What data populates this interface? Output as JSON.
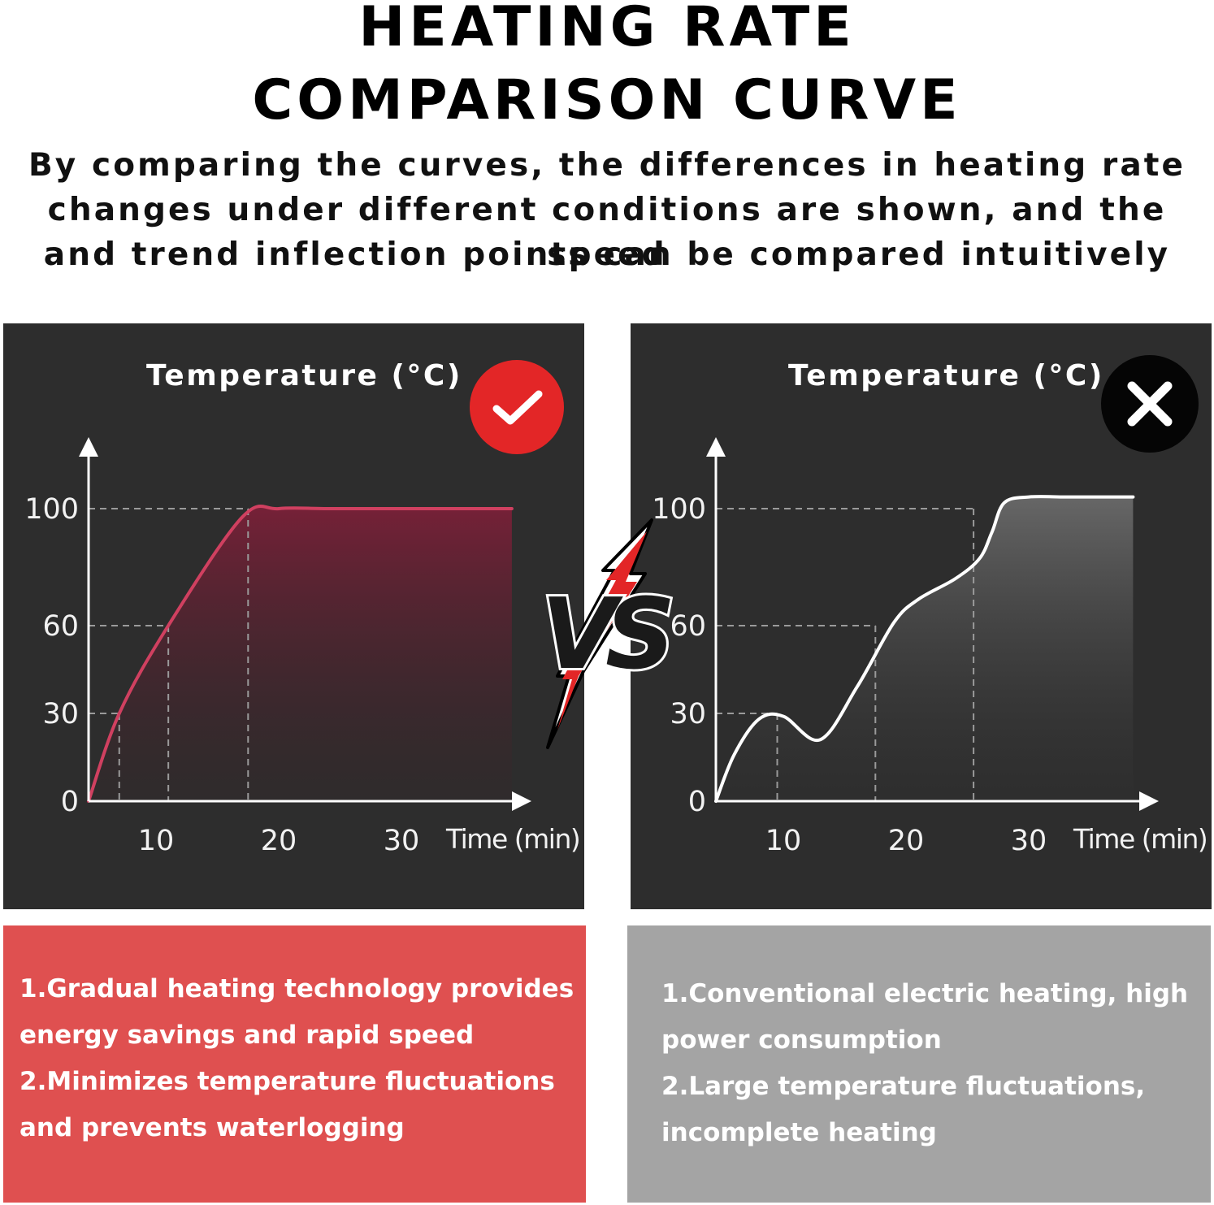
{
  "header": {
    "title_line1": "HEATING RATE",
    "title_line2": "COMPARISON CURVE",
    "subtitle_line1": "By comparing the curves, the differences in heating rate",
    "subtitle_line2": "changes under different conditions are shown, and the speed",
    "subtitle_line3": "and trend inflection points can be compared intuitively"
  },
  "vs_label": "VS",
  "colors": {
    "good_badge": "#e32627",
    "good_curve": "#d04060",
    "bad_badge": "#050505",
    "bad_curve": "#ffffff",
    "panel_bg": "#2d2d2d",
    "good_note_bg": "#df5050",
    "bad_note_bg": "#a4a4a4"
  },
  "chart_data": [
    {
      "type": "area",
      "title": "Temperature (°C)",
      "xlabel": "Time (min)",
      "ylabel": "Temperature (°C)",
      "badge_icon": "check-icon",
      "y_ticks": [
        0,
        30,
        60,
        100
      ],
      "x_ticks": [
        10,
        20,
        30
      ],
      "grid": false,
      "series": [
        {
          "x": [
            4.5,
            7,
            11,
            17,
            20,
            24,
            30,
            39
          ],
          "y": [
            0,
            30,
            60,
            97,
            100,
            100,
            100,
            100
          ]
        }
      ],
      "reference_points": [
        {
          "x": 7,
          "y": 30
        },
        {
          "x": 11,
          "y": 60
        },
        {
          "x": 17.5,
          "y": 100
        }
      ]
    },
    {
      "type": "area",
      "title": "Temperature (°C)",
      "xlabel": "Time (min)",
      "ylabel": "Temperature (°C)",
      "badge_icon": "x-icon",
      "y_ticks": [
        0,
        30,
        60,
        100
      ],
      "x_ticks": [
        10,
        20,
        30
      ],
      "grid": false,
      "series": [
        {
          "x": [
            4.5,
            6,
            8,
            10,
            13,
            16,
            19,
            21,
            24,
            26,
            27,
            28,
            30,
            33,
            36,
            38.5
          ],
          "y": [
            0,
            16,
            28,
            29,
            21,
            39,
            61,
            69,
            76,
            83,
            92,
            102,
            104,
            104,
            104,
            104
          ]
        }
      ],
      "reference_points": [
        {
          "x": 9.5,
          "y": 30
        },
        {
          "x": 17.5,
          "y": 60
        },
        {
          "x": 25.5,
          "y": 100
        }
      ]
    }
  ],
  "notes": {
    "good": [
      "1.Gradual heating technology provides",
      "energy savings and rapid speed",
      "2.Minimizes temperature fluctuations",
      "and prevents waterlogging"
    ],
    "bad": [
      "1.Conventional electric heating, high",
      "power consumption",
      "2.Large temperature fluctuations,",
      "incomplete heating"
    ]
  }
}
